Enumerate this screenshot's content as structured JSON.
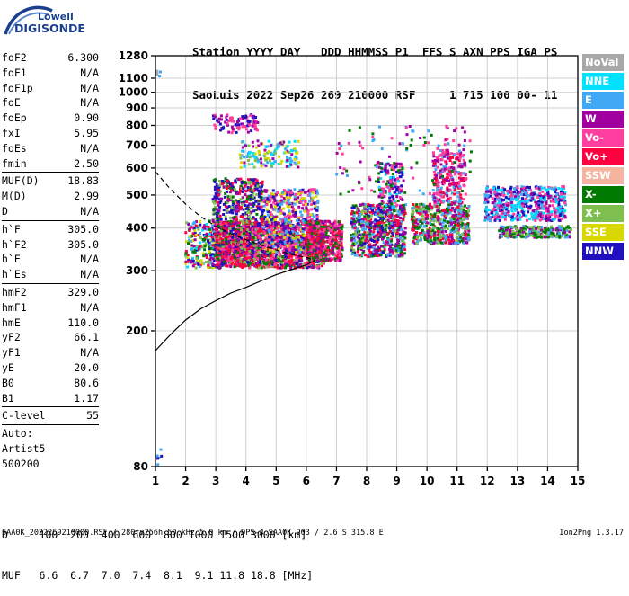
{
  "logo": {
    "line1": "Lowell",
    "line2": "DIGISONDE"
  },
  "header": {
    "line1": "Station YYYY DAY   DDD HHMMSS P1  FFS S AXN PPS IGA PS",
    "line2": "SaoLuis 2022 Sep26 269 210000 RSF     1 715 100 00- 11"
  },
  "params": [
    {
      "name": "foF2",
      "value": "6.300"
    },
    {
      "name": "foF1",
      "value": "N/A"
    },
    {
      "name": "foF1p",
      "value": "N/A"
    },
    {
      "name": "foE",
      "value": "N/A"
    },
    {
      "name": "foEp",
      "value": "0.90"
    },
    {
      "name": "fxI",
      "value": "5.95"
    },
    {
      "name": "foEs",
      "value": "N/A"
    },
    {
      "name": "fmin",
      "value": "2.50"
    },
    {
      "sep": true
    },
    {
      "name": "MUF(D)",
      "value": "18.83"
    },
    {
      "name": "M(D)",
      "value": "2.99"
    },
    {
      "name": "D",
      "value": "N/A"
    },
    {
      "sep": true
    },
    {
      "name": "h`F",
      "value": "305.0"
    },
    {
      "name": "h`F2",
      "value": "305.0"
    },
    {
      "name": "h`E",
      "value": "N/A"
    },
    {
      "name": "h`Es",
      "value": "N/A"
    },
    {
      "sep": true
    },
    {
      "name": "hmF2",
      "value": "329.0"
    },
    {
      "name": "hmF1",
      "value": "N/A"
    },
    {
      "name": "hmE",
      "value": "110.0"
    },
    {
      "name": "yF2",
      "value": "66.1"
    },
    {
      "name": "yF1",
      "value": "N/A"
    },
    {
      "name": "yE",
      "value": "20.0"
    },
    {
      "name": "B0",
      "value": "80.6"
    },
    {
      "name": "B1",
      "value": "1.17"
    },
    {
      "sep": true
    },
    {
      "name": "C-level",
      "value": "55"
    },
    {
      "sep": true
    },
    {
      "text": "Auto:"
    },
    {
      "text": "Artist5"
    },
    {
      "text": "500200"
    }
  ],
  "legend": [
    {
      "label": "NoVal",
      "color": "#a8a8a8"
    },
    {
      "label": "NNE",
      "color": "#00e0ff"
    },
    {
      "label": "E",
      "color": "#3fa9f5"
    },
    {
      "label": "W",
      "color": "#a0009f"
    },
    {
      "label": "Vo-",
      "color": "#ff3fa0"
    },
    {
      "label": "Vo+",
      "color": "#ff0040"
    },
    {
      "label": "SSW",
      "color": "#f4b4a0"
    },
    {
      "label": "X-",
      "color": "#007a00"
    },
    {
      "label": "X+",
      "color": "#7fbf50"
    },
    {
      "label": "SSE",
      "color": "#d8d800"
    },
    {
      "label": "NNW",
      "color": "#2010c0"
    }
  ],
  "bottom": {
    "d_line": "D     100  200  400  600  800 1000 1500 3000 [km]",
    "muf_line": "MUF   6.6  6.7  7.0  7.4  8.1  9.1 11.8 18.8 [MHz]"
  },
  "footer": {
    "left": "SAA0K_2022269210000.RSF / 280fx256h 50 kHz 5.0 km / DPS-4 SAA0K 903 / 2.6 S 315.8 E",
    "right": "Ion2Png 1.3.17"
  },
  "chart_data": {
    "type": "scatter",
    "title": "",
    "xlabel": "",
    "ylabel": "",
    "xlim": [
      1,
      15
    ],
    "ylim": [
      80,
      1280
    ],
    "y_scale": "log",
    "x_ticks": [
      1,
      2,
      3,
      4,
      5,
      6,
      7,
      8,
      9,
      10,
      11,
      12,
      13,
      14,
      15
    ],
    "y_ticks": [
      80,
      200,
      300,
      400,
      500,
      600,
      700,
      800,
      900,
      1000,
      1100,
      1280
    ],
    "grid": true,
    "series": [
      {
        "color": "#000000",
        "dash": false,
        "points": [
          [
            1.0,
            175
          ],
          [
            1.5,
            195
          ],
          [
            2.0,
            215
          ],
          [
            2.5,
            232
          ],
          [
            3.0,
            245
          ],
          [
            3.5,
            258
          ],
          [
            4.0,
            268
          ],
          [
            4.5,
            280
          ],
          [
            5.0,
            292
          ],
          [
            5.5,
            302
          ],
          [
            6.0,
            312
          ],
          [
            6.3,
            322
          ]
        ]
      },
      {
        "color": "#000000",
        "dash": true,
        "points": [
          [
            1.0,
            585
          ],
          [
            1.5,
            520
          ],
          [
            2.0,
            470
          ],
          [
            2.5,
            432
          ],
          [
            3.0,
            405
          ],
          [
            3.5,
            385
          ],
          [
            4.0,
            370
          ],
          [
            4.5,
            357
          ],
          [
            5.0,
            345
          ],
          [
            5.5,
            335
          ],
          [
            6.0,
            328
          ],
          [
            6.3,
            322
          ]
        ]
      }
    ],
    "clusters": [
      {
        "x": [
          2.0,
          3.0
        ],
        "y": [
          305,
          420
        ],
        "n": 220,
        "colors": [
          "#2010c0",
          "#a0009f",
          "#ff0040",
          "#007a00",
          "#7fbf50",
          "#3fa9f5",
          "#00e0ff",
          "#d8d800"
        ]
      },
      {
        "x": [
          2.9,
          4.6
        ],
        "y": [
          310,
          560
        ],
        "n": 700,
        "colors": [
          "#2010c0",
          "#a0009f",
          "#2010c0",
          "#ff0040",
          "#007a00",
          "#7fbf50"
        ]
      },
      {
        "x": [
          3.0,
          6.6
        ],
        "y": [
          305,
          420
        ],
        "n": 1400,
        "colors": [
          "#ff0040",
          "#ff3fa0",
          "#ff0040",
          "#007a00",
          "#a0009f",
          "#2010c0",
          "#7fbf50"
        ]
      },
      {
        "x": [
          4.6,
          6.4
        ],
        "y": [
          340,
          520
        ],
        "n": 500,
        "colors": [
          "#2010c0",
          "#a0009f",
          "#3fa9f5",
          "#ff3fa0",
          "#d8d800"
        ]
      },
      {
        "x": [
          6.0,
          7.2
        ],
        "y": [
          320,
          420
        ],
        "n": 500,
        "colors": [
          "#ff0040",
          "#ff3fa0",
          "#a0009f",
          "#007a00"
        ]
      },
      {
        "x": [
          7.5,
          9.3
        ],
        "y": [
          330,
          470
        ],
        "n": 650,
        "colors": [
          "#ff0040",
          "#a0009f",
          "#007a00",
          "#7fbf50",
          "#3fa9f5",
          "#2010c0"
        ]
      },
      {
        "x": [
          8.4,
          9.2
        ],
        "y": [
          450,
          620
        ],
        "n": 180,
        "colors": [
          "#a0009f",
          "#ff3fa0",
          "#00e0ff",
          "#2010c0",
          "#007a00"
        ]
      },
      {
        "x": [
          9.5,
          11.4
        ],
        "y": [
          360,
          470
        ],
        "n": 550,
        "colors": [
          "#ff0040",
          "#a0009f",
          "#007a00",
          "#7fbf50",
          "#3fa9f5"
        ]
      },
      {
        "x": [
          10.2,
          11.3
        ],
        "y": [
          470,
          680
        ],
        "n": 260,
        "colors": [
          "#a0009f",
          "#ff0040",
          "#ff3fa0",
          "#3fa9f5"
        ]
      },
      {
        "x": [
          11.9,
          14.6
        ],
        "y": [
          420,
          530
        ],
        "n": 550,
        "colors": [
          "#00e0ff",
          "#3fa9f5",
          "#a0009f",
          "#2010c0",
          "#ff3fa0"
        ]
      },
      {
        "x": [
          12.4,
          14.8
        ],
        "y": [
          375,
          405
        ],
        "n": 260,
        "colors": [
          "#007a00",
          "#7fbf50",
          "#a0009f",
          "#3fa9f5"
        ]
      },
      {
        "x": [
          3.8,
          5.8
        ],
        "y": [
          600,
          720
        ],
        "n": 140,
        "colors": [
          "#d8d800",
          "#00e0ff",
          "#3fa9f5",
          "#7fbf50",
          "#a0009f"
        ]
      },
      {
        "x": [
          2.9,
          4.4
        ],
        "y": [
          760,
          860
        ],
        "n": 90,
        "colors": [
          "#a0009f",
          "#ff3fa0",
          "#2010c0"
        ]
      },
      {
        "x": [
          7.0,
          11.5
        ],
        "y": [
          500,
          800
        ],
        "n": 120,
        "colors": [
          "#a0009f",
          "#ff3fa0",
          "#3fa9f5",
          "#007a00"
        ]
      },
      {
        "x": [
          1.05,
          1.2
        ],
        "y": [
          80,
          90
        ],
        "n": 6,
        "colors": [
          "#2010c0",
          "#3fa9f5"
        ]
      },
      {
        "x": [
          1.05,
          1.2
        ],
        "y": [
          1110,
          1160
        ],
        "n": 5,
        "colors": [
          "#2010c0",
          "#3fa9f5",
          "#a8a8a8"
        ]
      }
    ]
  }
}
